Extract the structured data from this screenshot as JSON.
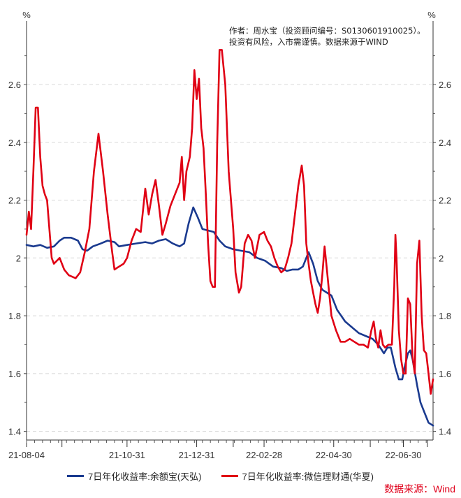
{
  "chart_data": {
    "type": "line",
    "unit_left": "%",
    "unit_right": "%",
    "note_lines": [
      "作者：周水宝（投资顾问编号：S0130601910025）。",
      "投资有风险，入市需谨慎。数据来源于WIND"
    ],
    "ylim": [
      1.37,
      2.82
    ],
    "yticks": [
      1.4,
      1.6,
      1.8,
      2,
      2.2,
      2.4,
      2.6
    ],
    "ytick_labels": [
      "1.4",
      "1.6",
      "1.8",
      "2",
      "2.2",
      "2.4",
      "2.6"
    ],
    "xlim": [
      "2021-08-04",
      "2022-07-26"
    ],
    "xticks": [
      "2021-08-04",
      "2021-10-31",
      "2021-12-31",
      "2022-02-28",
      "2022-04-30",
      "2022-06-30"
    ],
    "xtick_labels": [
      "21-08-04",
      "21-10-31",
      "21-12-31",
      "22-02-28",
      "22-04-30",
      "22-06-30"
    ],
    "grid": true,
    "legend_position": "bottom",
    "series": [
      {
        "name": "7日年化收益率:余额宝(天弘)",
        "color": "#1a3a8f",
        "points": [
          [
            "2021-08-04",
            2.045
          ],
          [
            "2021-08-10",
            2.04
          ],
          [
            "2021-08-16",
            2.045
          ],
          [
            "2021-08-22",
            2.035
          ],
          [
            "2021-08-28",
            2.04
          ],
          [
            "2021-09-02",
            2.06
          ],
          [
            "2021-09-06",
            2.07
          ],
          [
            "2021-09-12",
            2.07
          ],
          [
            "2021-09-18",
            2.06
          ],
          [
            "2021-09-22",
            2.03
          ],
          [
            "2021-09-26",
            2.025
          ],
          [
            "2021-10-01",
            2.04
          ],
          [
            "2021-10-08",
            2.05
          ],
          [
            "2021-10-14",
            2.06
          ],
          [
            "2021-10-20",
            2.055
          ],
          [
            "2021-10-24",
            2.04
          ],
          [
            "2021-10-31",
            2.045
          ],
          [
            "2021-11-08",
            2.05
          ],
          [
            "2021-11-16",
            2.055
          ],
          [
            "2021-11-22",
            2.05
          ],
          [
            "2021-11-28",
            2.06
          ],
          [
            "2021-12-04",
            2.065
          ],
          [
            "2021-12-10",
            2.05
          ],
          [
            "2021-12-16",
            2.04
          ],
          [
            "2021-12-20",
            2.05
          ],
          [
            "2021-12-24",
            2.12
          ],
          [
            "2021-12-28",
            2.175
          ],
          [
            "2022-01-01",
            2.14
          ],
          [
            "2022-01-05",
            2.1
          ],
          [
            "2022-01-10",
            2.095
          ],
          [
            "2022-01-15",
            2.09
          ],
          [
            "2022-01-20",
            2.06
          ],
          [
            "2022-01-25",
            2.04
          ],
          [
            "2022-02-01",
            2.03
          ],
          [
            "2022-02-08",
            2.025
          ],
          [
            "2022-02-15",
            2.02
          ],
          [
            "2022-02-22",
            2.0
          ],
          [
            "2022-03-01",
            1.99
          ],
          [
            "2022-03-08",
            1.97
          ],
          [
            "2022-03-15",
            1.965
          ],
          [
            "2022-03-20",
            1.955
          ],
          [
            "2022-03-25",
            1.96
          ],
          [
            "2022-03-30",
            1.96
          ],
          [
            "2022-04-03",
            1.97
          ],
          [
            "2022-04-08",
            2.02
          ],
          [
            "2022-04-12",
            1.98
          ],
          [
            "2022-04-16",
            1.92
          ],
          [
            "2022-04-20",
            1.89
          ],
          [
            "2022-04-24",
            1.88
          ],
          [
            "2022-04-28",
            1.87
          ],
          [
            "2022-05-03",
            1.82
          ],
          [
            "2022-05-10",
            1.78
          ],
          [
            "2022-05-16",
            1.76
          ],
          [
            "2022-05-22",
            1.74
          ],
          [
            "2022-05-28",
            1.73
          ],
          [
            "2022-06-03",
            1.72
          ],
          [
            "2022-06-08",
            1.7
          ],
          [
            "2022-06-13",
            1.67
          ],
          [
            "2022-06-16",
            1.69
          ],
          [
            "2022-06-19",
            1.69
          ],
          [
            "2022-06-23",
            1.62
          ],
          [
            "2022-06-26",
            1.58
          ],
          [
            "2022-06-29",
            1.58
          ],
          [
            "2022-07-01",
            1.62
          ],
          [
            "2022-07-04",
            1.67
          ],
          [
            "2022-07-06",
            1.68
          ],
          [
            "2022-07-08",
            1.65
          ],
          [
            "2022-07-12",
            1.56
          ],
          [
            "2022-07-15",
            1.5
          ],
          [
            "2022-07-18",
            1.47
          ],
          [
            "2022-07-20",
            1.45
          ],
          [
            "2022-07-22",
            1.43
          ],
          [
            "2022-07-26",
            1.42
          ]
        ]
      },
      {
        "name": "7日年化收益率:微信理财通(华夏)",
        "color": "#e00014",
        "points": [
          [
            "2021-08-04",
            2.08
          ],
          [
            "2021-08-06",
            2.16
          ],
          [
            "2021-08-08",
            2.1
          ],
          [
            "2021-08-10",
            2.3
          ],
          [
            "2021-08-12",
            2.52
          ],
          [
            "2021-08-14",
            2.52
          ],
          [
            "2021-08-16",
            2.35
          ],
          [
            "2021-08-18",
            2.25
          ],
          [
            "2021-08-20",
            2.22
          ],
          [
            "2021-08-22",
            2.2
          ],
          [
            "2021-08-24",
            2.1
          ],
          [
            "2021-08-26",
            2.0
          ],
          [
            "2021-08-28",
            1.98
          ],
          [
            "2021-09-02",
            2.0
          ],
          [
            "2021-09-06",
            1.96
          ],
          [
            "2021-09-10",
            1.94
          ],
          [
            "2021-09-16",
            1.93
          ],
          [
            "2021-09-20",
            1.95
          ],
          [
            "2021-09-24",
            2.02
          ],
          [
            "2021-09-28",
            2.1
          ],
          [
            "2021-10-02",
            2.3
          ],
          [
            "2021-10-06",
            2.43
          ],
          [
            "2021-10-10",
            2.3
          ],
          [
            "2021-10-14",
            2.15
          ],
          [
            "2021-10-18",
            2.02
          ],
          [
            "2021-10-20",
            1.96
          ],
          [
            "2021-10-24",
            1.97
          ],
          [
            "2021-10-28",
            1.98
          ],
          [
            "2021-10-31",
            2.0
          ],
          [
            "2021-11-04",
            2.06
          ],
          [
            "2021-11-08",
            2.1
          ],
          [
            "2021-11-12",
            2.09
          ],
          [
            "2021-11-16",
            2.24
          ],
          [
            "2021-11-19",
            2.15
          ],
          [
            "2021-11-22",
            2.22
          ],
          [
            "2021-11-25",
            2.27
          ],
          [
            "2021-11-28",
            2.18
          ],
          [
            "2021-12-01",
            2.08
          ],
          [
            "2021-12-04",
            2.12
          ],
          [
            "2021-12-08",
            2.18
          ],
          [
            "2021-12-12",
            2.22
          ],
          [
            "2021-12-16",
            2.26
          ],
          [
            "2021-12-18",
            2.35
          ],
          [
            "2021-12-20",
            2.2
          ],
          [
            "2021-12-22",
            2.3
          ],
          [
            "2021-12-25",
            2.35
          ],
          [
            "2021-12-27",
            2.45
          ],
          [
            "2021-12-29",
            2.65
          ],
          [
            "2021-12-31",
            2.55
          ],
          [
            "2022-01-02",
            2.62
          ],
          [
            "2022-01-04",
            2.45
          ],
          [
            "2022-01-06",
            2.38
          ],
          [
            "2022-01-08",
            2.22
          ],
          [
            "2022-01-10",
            2.05
          ],
          [
            "2022-01-12",
            1.92
          ],
          [
            "2022-01-14",
            1.9
          ],
          [
            "2022-01-16",
            1.9
          ],
          [
            "2022-01-18",
            2.4
          ],
          [
            "2022-01-20",
            2.72
          ],
          [
            "2022-01-22",
            2.72
          ],
          [
            "2022-01-25",
            2.6
          ],
          [
            "2022-01-28",
            2.3
          ],
          [
            "2022-02-01",
            2.1
          ],
          [
            "2022-02-03",
            1.95
          ],
          [
            "2022-02-06",
            1.88
          ],
          [
            "2022-02-08",
            1.9
          ],
          [
            "2022-02-11",
            2.05
          ],
          [
            "2022-02-14",
            2.08
          ],
          [
            "2022-02-17",
            2.06
          ],
          [
            "2022-02-20",
            2.0
          ],
          [
            "2022-02-24",
            2.08
          ],
          [
            "2022-02-28",
            2.09
          ],
          [
            "2022-03-03",
            2.06
          ],
          [
            "2022-03-06",
            2.04
          ],
          [
            "2022-03-09",
            2.0
          ],
          [
            "2022-03-12",
            1.97
          ],
          [
            "2022-03-15",
            1.95
          ],
          [
            "2022-03-18",
            1.96
          ],
          [
            "2022-03-21",
            2.0
          ],
          [
            "2022-03-24",
            2.05
          ],
          [
            "2022-03-27",
            2.15
          ],
          [
            "2022-03-30",
            2.25
          ],
          [
            "2022-04-02",
            2.32
          ],
          [
            "2022-04-04",
            2.25
          ],
          [
            "2022-04-06",
            2.05
          ],
          [
            "2022-04-08",
            1.98
          ],
          [
            "2022-04-10",
            1.92
          ],
          [
            "2022-04-12",
            1.88
          ],
          [
            "2022-04-14",
            1.84
          ],
          [
            "2022-04-16",
            1.81
          ],
          [
            "2022-04-18",
            1.86
          ],
          [
            "2022-04-20",
            1.94
          ],
          [
            "2022-04-22",
            2.04
          ],
          [
            "2022-04-24",
            1.96
          ],
          [
            "2022-04-26",
            1.88
          ],
          [
            "2022-04-28",
            1.8
          ],
          [
            "2022-05-02",
            1.75
          ],
          [
            "2022-05-06",
            1.71
          ],
          [
            "2022-05-10",
            1.71
          ],
          [
            "2022-05-14",
            1.72
          ],
          [
            "2022-05-18",
            1.71
          ],
          [
            "2022-05-22",
            1.7
          ],
          [
            "2022-05-26",
            1.7
          ],
          [
            "2022-05-30",
            1.69
          ],
          [
            "2022-06-02",
            1.75
          ],
          [
            "2022-06-04",
            1.78
          ],
          [
            "2022-06-06",
            1.72
          ],
          [
            "2022-06-08",
            1.69
          ],
          [
            "2022-06-10",
            1.75
          ],
          [
            "2022-06-12",
            1.7
          ],
          [
            "2022-06-14",
            1.69
          ],
          [
            "2022-06-17",
            1.7
          ],
          [
            "2022-06-20",
            1.7
          ],
          [
            "2022-06-22",
            1.9
          ],
          [
            "2022-06-23",
            2.08
          ],
          [
            "2022-06-24",
            2.0
          ],
          [
            "2022-06-26",
            1.75
          ],
          [
            "2022-06-28",
            1.65
          ],
          [
            "2022-06-30",
            1.6
          ],
          [
            "2022-07-02",
            1.6
          ],
          [
            "2022-07-04",
            1.86
          ],
          [
            "2022-07-06",
            1.84
          ],
          [
            "2022-07-08",
            1.66
          ],
          [
            "2022-07-10",
            1.6
          ],
          [
            "2022-07-12",
            1.98
          ],
          [
            "2022-07-14",
            2.06
          ],
          [
            "2022-07-16",
            1.8
          ],
          [
            "2022-07-18",
            1.68
          ],
          [
            "2022-07-20",
            1.67
          ],
          [
            "2022-07-22",
            1.6
          ],
          [
            "2022-07-24",
            1.53
          ],
          [
            "2022-07-26",
            1.58
          ]
        ]
      }
    ]
  },
  "source": "数据来源：Wind"
}
